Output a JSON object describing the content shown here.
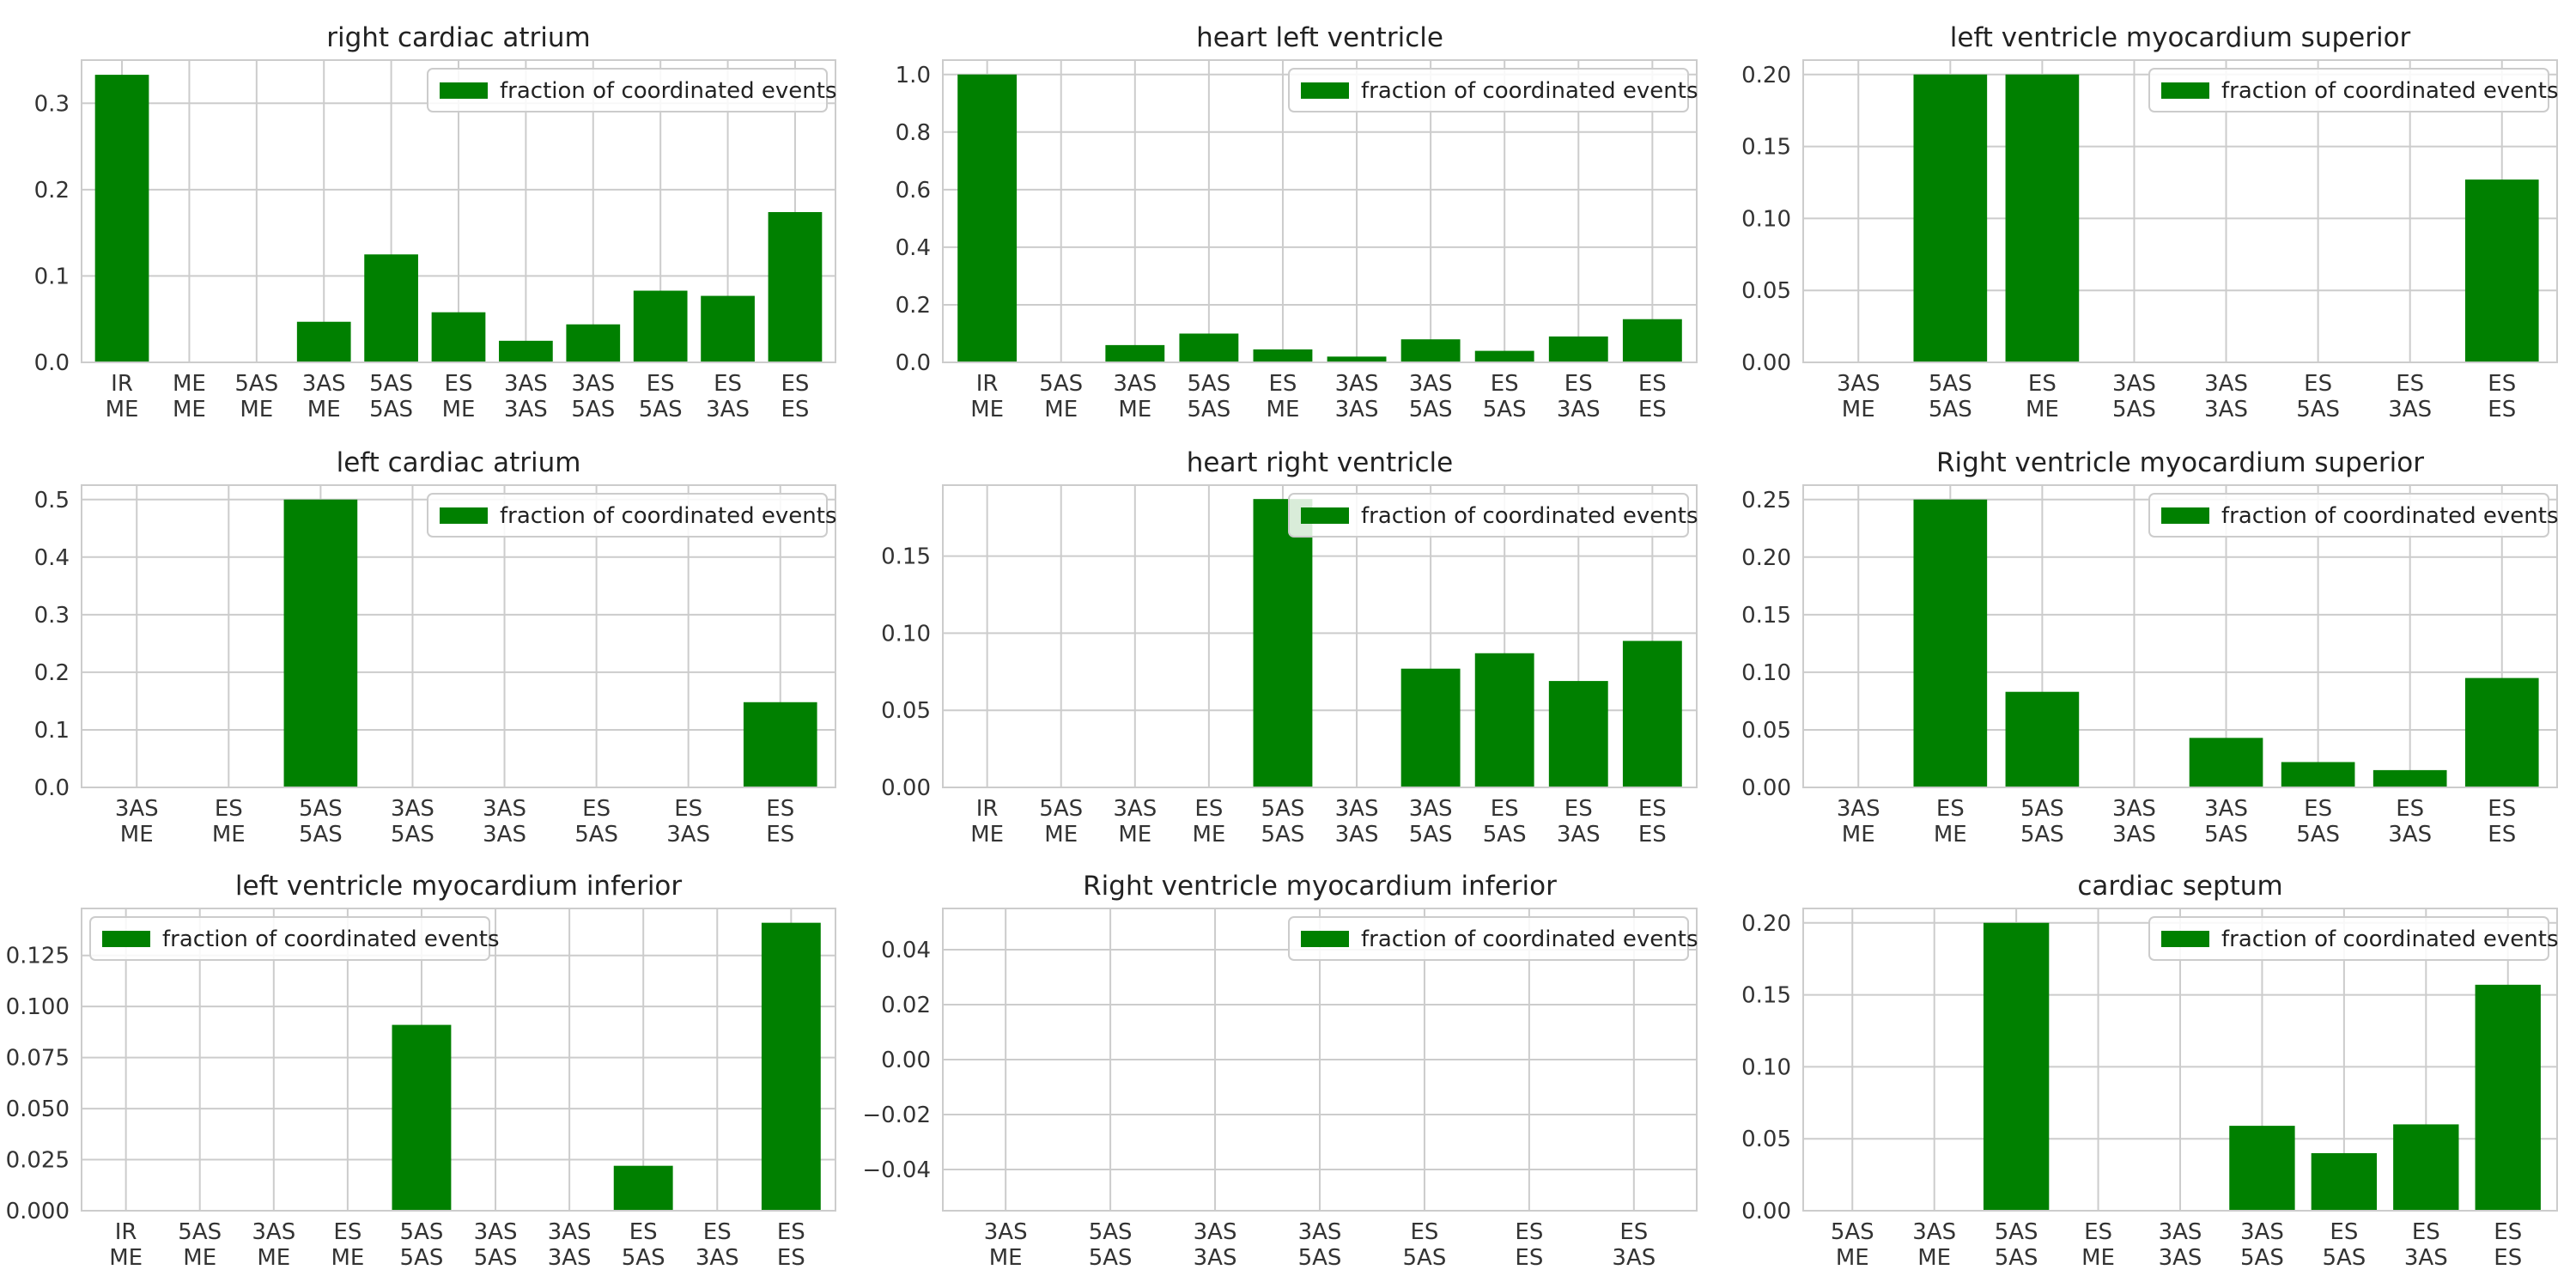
{
  "colors": {
    "bar": "#008000"
  },
  "legend_label": "fraction of coordinated events",
  "chart_data": [
    {
      "type": "bar",
      "title": "right cardiac atrium",
      "categories": [
        [
          "IR",
          "ME"
        ],
        [
          "ME",
          "ME"
        ],
        [
          "5AS",
          "ME"
        ],
        [
          "3AS",
          "ME"
        ],
        [
          "5AS",
          "5AS"
        ],
        [
          "ES",
          "ME"
        ],
        [
          "3AS",
          "3AS"
        ],
        [
          "3AS",
          "5AS"
        ],
        [
          "ES",
          "5AS"
        ],
        [
          "ES",
          "3AS"
        ],
        [
          "ES",
          "ES"
        ]
      ],
      "series": [
        {
          "name": "fraction of coordinated events",
          "values": [
            0.333,
            0,
            0,
            0.047,
            0.125,
            0.058,
            0.025,
            0.044,
            0.083,
            0.077,
            0.174
          ]
        }
      ],
      "ylim": [
        0,
        0.35
      ],
      "yticks": [
        0.0,
        0.1,
        0.2,
        0.3
      ],
      "ytick_labels": [
        "0.0",
        "0.1",
        "0.2",
        "0.3"
      ],
      "grid": true,
      "legend": "upper right"
    },
    {
      "type": "bar",
      "title": "heart left ventricle",
      "categories": [
        [
          "IR",
          "ME"
        ],
        [
          "5AS",
          "ME"
        ],
        [
          "3AS",
          "ME"
        ],
        [
          "5AS",
          "5AS"
        ],
        [
          "ES",
          "ME"
        ],
        [
          "3AS",
          "3AS"
        ],
        [
          "3AS",
          "5AS"
        ],
        [
          "ES",
          "5AS"
        ],
        [
          "ES",
          "3AS"
        ],
        [
          "ES",
          "ES"
        ]
      ],
      "series": [
        {
          "name": "fraction of coordinated events",
          "values": [
            1.0,
            0,
            0.06,
            0.1,
            0.045,
            0.02,
            0.08,
            0.04,
            0.09,
            0.15
          ]
        }
      ],
      "ylim": [
        0,
        1.05
      ],
      "yticks": [
        0.0,
        0.2,
        0.4,
        0.6,
        0.8,
        1.0
      ],
      "ytick_labels": [
        "0.0",
        "0.2",
        "0.4",
        "0.6",
        "0.8",
        "1.0"
      ],
      "grid": true,
      "legend": "upper right"
    },
    {
      "type": "bar",
      "title": "left ventricle myocardium superior",
      "categories": [
        [
          "3AS",
          "ME"
        ],
        [
          "5AS",
          "5AS"
        ],
        [
          "ES",
          "ME"
        ],
        [
          "3AS",
          "5AS"
        ],
        [
          "3AS",
          "3AS"
        ],
        [
          "ES",
          "5AS"
        ],
        [
          "ES",
          "3AS"
        ],
        [
          "ES",
          "ES"
        ]
      ],
      "series": [
        {
          "name": "fraction of coordinated events",
          "values": [
            0,
            0.2,
            0.2,
            0,
            0,
            0,
            0,
            0.127
          ]
        }
      ],
      "ylim": [
        0,
        0.21
      ],
      "yticks": [
        0.0,
        0.05,
        0.1,
        0.15,
        0.2
      ],
      "ytick_labels": [
        "0.00",
        "0.05",
        "0.10",
        "0.15",
        "0.20"
      ],
      "grid": true,
      "legend": "upper right"
    },
    {
      "type": "bar",
      "title": "left cardiac atrium",
      "categories": [
        [
          "3AS",
          "ME"
        ],
        [
          "ES",
          "ME"
        ],
        [
          "5AS",
          "5AS"
        ],
        [
          "3AS",
          "5AS"
        ],
        [
          "3AS",
          "3AS"
        ],
        [
          "ES",
          "5AS"
        ],
        [
          "ES",
          "3AS"
        ],
        [
          "ES",
          "ES"
        ]
      ],
      "series": [
        {
          "name": "fraction of coordinated events",
          "values": [
            0,
            0,
            0.5,
            0,
            0,
            0,
            0,
            0.148
          ]
        }
      ],
      "ylim": [
        0,
        0.525
      ],
      "yticks": [
        0.0,
        0.1,
        0.2,
        0.3,
        0.4,
        0.5
      ],
      "ytick_labels": [
        "0.0",
        "0.1",
        "0.2",
        "0.3",
        "0.4",
        "0.5"
      ],
      "grid": true,
      "legend": "upper right"
    },
    {
      "type": "bar",
      "title": "heart right ventricle",
      "categories": [
        [
          "IR",
          "ME"
        ],
        [
          "5AS",
          "ME"
        ],
        [
          "3AS",
          "ME"
        ],
        [
          "ES",
          "ME"
        ],
        [
          "5AS",
          "5AS"
        ],
        [
          "3AS",
          "3AS"
        ],
        [
          "3AS",
          "5AS"
        ],
        [
          "ES",
          "5AS"
        ],
        [
          "ES",
          "3AS"
        ],
        [
          "ES",
          "ES"
        ]
      ],
      "series": [
        {
          "name": "fraction of coordinated events",
          "values": [
            0,
            0,
            0,
            0,
            0.187,
            0,
            0.077,
            0.087,
            0.069,
            0.095
          ]
        }
      ],
      "ylim": [
        0,
        0.196
      ],
      "yticks": [
        0.0,
        0.05,
        0.1,
        0.15
      ],
      "ytick_labels": [
        "0.00",
        "0.05",
        "0.10",
        "0.15"
      ],
      "grid": true,
      "legend": "upper right"
    },
    {
      "type": "bar",
      "title": "Right ventricle myocardium superior",
      "categories": [
        [
          "3AS",
          "ME"
        ],
        [
          "ES",
          "ME"
        ],
        [
          "5AS",
          "5AS"
        ],
        [
          "3AS",
          "3AS"
        ],
        [
          "3AS",
          "5AS"
        ],
        [
          "ES",
          "5AS"
        ],
        [
          "ES",
          "3AS"
        ],
        [
          "ES",
          "ES"
        ]
      ],
      "series": [
        {
          "name": "fraction of coordinated events",
          "values": [
            0,
            0.25,
            0.083,
            0,
            0.043,
            0.022,
            0.015,
            0.095
          ]
        }
      ],
      "ylim": [
        0,
        0.2625
      ],
      "yticks": [
        0.0,
        0.05,
        0.1,
        0.15,
        0.2,
        0.25
      ],
      "ytick_labels": [
        "0.00",
        "0.05",
        "0.10",
        "0.15",
        "0.20",
        "0.25"
      ],
      "grid": true,
      "legend": "upper right"
    },
    {
      "type": "bar",
      "title": "left ventricle myocardium inferior",
      "categories": [
        [
          "IR",
          "ME"
        ],
        [
          "5AS",
          "ME"
        ],
        [
          "3AS",
          "ME"
        ],
        [
          "ES",
          "ME"
        ],
        [
          "5AS",
          "5AS"
        ],
        [
          "3AS",
          "5AS"
        ],
        [
          "3AS",
          "3AS"
        ],
        [
          "ES",
          "5AS"
        ],
        [
          "ES",
          "3AS"
        ],
        [
          "ES",
          "ES"
        ]
      ],
      "series": [
        {
          "name": "fraction of coordinated events",
          "values": [
            0,
            0,
            0,
            0,
            0.091,
            0,
            0,
            0.022,
            0,
            0.141
          ]
        }
      ],
      "ylim": [
        0,
        0.148
      ],
      "yticks": [
        0.0,
        0.025,
        0.05,
        0.075,
        0.1,
        0.125
      ],
      "ytick_labels": [
        "0.000",
        "0.025",
        "0.050",
        "0.075",
        "0.100",
        "0.125"
      ],
      "grid": true,
      "legend": "upper left"
    },
    {
      "type": "bar",
      "title": "Right ventricle myocardium inferior",
      "categories": [
        [
          "3AS",
          "ME"
        ],
        [
          "5AS",
          "5AS"
        ],
        [
          "3AS",
          "3AS"
        ],
        [
          "3AS",
          "5AS"
        ],
        [
          "ES",
          "5AS"
        ],
        [
          "ES",
          "ES"
        ],
        [
          "ES",
          "3AS"
        ]
      ],
      "series": [
        {
          "name": "fraction of coordinated events",
          "values": [
            0,
            0,
            0,
            0,
            0,
            0,
            0
          ]
        }
      ],
      "ylim": [
        -0.055,
        0.055
      ],
      "yticks": [
        -0.04,
        -0.02,
        0.0,
        0.02,
        0.04
      ],
      "ytick_labels": [
        "−0.04",
        "−0.02",
        "0.00",
        "0.02",
        "0.04"
      ],
      "grid": true,
      "legend": "upper right"
    },
    {
      "type": "bar",
      "title": "cardiac septum",
      "categories": [
        [
          "5AS",
          "ME"
        ],
        [
          "3AS",
          "ME"
        ],
        [
          "5AS",
          "5AS"
        ],
        [
          "ES",
          "ME"
        ],
        [
          "3AS",
          "3AS"
        ],
        [
          "3AS",
          "5AS"
        ],
        [
          "ES",
          "5AS"
        ],
        [
          "ES",
          "3AS"
        ],
        [
          "ES",
          "ES"
        ]
      ],
      "series": [
        {
          "name": "fraction of coordinated events",
          "values": [
            0,
            0,
            0.2,
            0,
            0,
            0.059,
            0.04,
            0.06,
            0.157
          ]
        }
      ],
      "ylim": [
        0,
        0.21
      ],
      "yticks": [
        0.0,
        0.05,
        0.1,
        0.15,
        0.2
      ],
      "ytick_labels": [
        "0.00",
        "0.05",
        "0.10",
        "0.15",
        "0.20"
      ],
      "grid": true,
      "legend": "upper right"
    }
  ]
}
